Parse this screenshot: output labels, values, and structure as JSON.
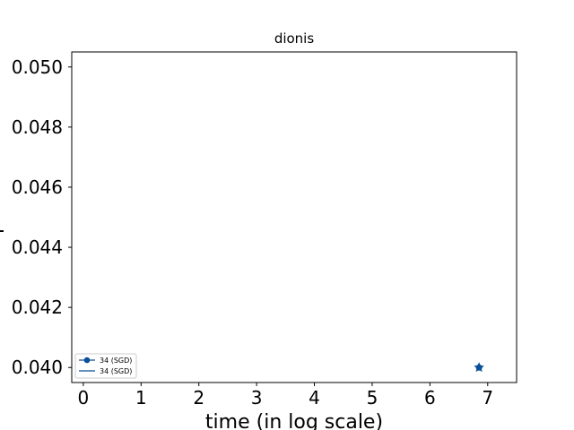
{
  "chart_data": {
    "type": "line",
    "title": "dionis",
    "xlabel": "time (in log scale)",
    "ylabel": "",
    "xlim": [
      -0.2,
      7.5
    ],
    "ylim": [
      0.0395,
      0.0505
    ],
    "x_ticks": [
      0,
      1,
      2,
      3,
      4,
      5,
      6,
      7
    ],
    "y_ticks": [
      0.04,
      0.042,
      0.044,
      0.046,
      0.048,
      0.05
    ],
    "x_tick_labels": [
      "0",
      "1",
      "2",
      "3",
      "4",
      "5",
      "6",
      "7"
    ],
    "y_tick_labels": [
      "0.040",
      "0.042",
      "0.044",
      "0.046",
      "0.048",
      "0.050"
    ],
    "grid": false,
    "legend_position": "lower-left",
    "series": [
      {
        "name": "34 (SGD)",
        "style": "line-with-circle-markers",
        "color": "#0b4f99",
        "x": [
          6.85
        ],
        "y": [
          0.04
        ]
      },
      {
        "name": "34 (SGD)",
        "style": "line",
        "color": "#0b4f99",
        "x": [
          6.85
        ],
        "y": [
          0.04
        ]
      }
    ],
    "annotations": [
      {
        "text": "*",
        "x": 6.85,
        "y": 0.04,
        "color": "#0b4f99"
      }
    ]
  }
}
